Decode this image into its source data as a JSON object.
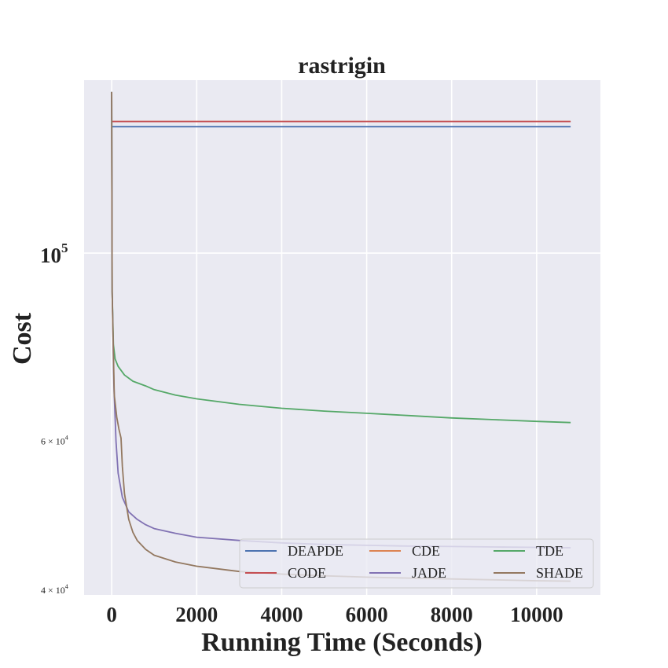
{
  "chart_data": {
    "type": "line",
    "title": "rastrigin",
    "xlabel": "Running Time (Seconds)",
    "ylabel": "Cost",
    "xlim": [
      -650,
      11500
    ],
    "ylim": [
      39500,
      160000
    ],
    "yscale": "log",
    "grid": true,
    "legend_position": "lower-right",
    "x_ticks": [
      {
        "value": 0,
        "label": "0"
      },
      {
        "value": 2000,
        "label": "2000"
      },
      {
        "value": 4000,
        "label": "4000"
      },
      {
        "value": 6000,
        "label": "6000"
      },
      {
        "value": 8000,
        "label": "8000"
      },
      {
        "value": 10000,
        "label": "10000"
      }
    ],
    "y_major_ticks": [
      {
        "value": 100000,
        "base": "10",
        "exp": "5"
      }
    ],
    "y_minor_ticks": [
      {
        "value": 60000,
        "mant": "6 × 10",
        "exp": "4"
      },
      {
        "value": 40000,
        "mant": "4 × 10",
        "exp": "4"
      }
    ],
    "series": [
      {
        "name": "DEAPDE",
        "color": "#4c72b0",
        "x": [
          0,
          10800
        ],
        "y": [
          141000,
          141000
        ]
      },
      {
        "name": "CDE",
        "color": "#dd8452",
        "x": [
          0,
          10800
        ],
        "y": [
          143000,
          143000
        ]
      },
      {
        "name": "TDE",
        "color": "#55a868",
        "x": [
          0,
          10,
          40,
          80,
          150,
          300,
          500,
          800,
          1000,
          1500,
          2000,
          3000,
          4000,
          5000,
          6000,
          7000,
          8000,
          9000,
          10000,
          10800
        ],
        "y": [
          155000,
          90000,
          78000,
          75000,
          73500,
          71800,
          70600,
          69700,
          69000,
          68000,
          67300,
          66300,
          65600,
          65100,
          64700,
          64300,
          63900,
          63600,
          63300,
          63100
        ]
      },
      {
        "name": "CODE",
        "color": "#c44e52",
        "x": [
          0,
          10800
        ],
        "y": [
          143000,
          143000
        ]
      },
      {
        "name": "JADE",
        "color": "#8172b3",
        "x": [
          0,
          10,
          50,
          100,
          150,
          250,
          400,
          600,
          800,
          1000,
          1500,
          2000,
          3000,
          4000,
          5000,
          6000,
          7000,
          8000,
          9000,
          10000,
          10800
        ],
        "y": [
          155000,
          90000,
          70000,
          60000,
          55000,
          51500,
          49500,
          48500,
          47800,
          47300,
          46700,
          46200,
          45800,
          45500,
          45300,
          45200,
          45100,
          45050,
          45000,
          44950,
          44900
        ]
      },
      {
        "name": "SHADE",
        "color": "#937860",
        "x": [
          0,
          10,
          60,
          120,
          170,
          220,
          250,
          300,
          400,
          500,
          600,
          800,
          1000,
          1500,
          2000,
          3000,
          4000,
          5000,
          6000,
          7000,
          8000,
          9000,
          10000,
          10800
        ],
        "y": [
          155000,
          90000,
          68000,
          64000,
          62000,
          60500,
          56000,
          52000,
          48500,
          46800,
          45800,
          44700,
          44000,
          43200,
          42700,
          42100,
          41800,
          41600,
          41450,
          41350,
          41250,
          41150,
          41050,
          41000
        ]
      }
    ]
  }
}
